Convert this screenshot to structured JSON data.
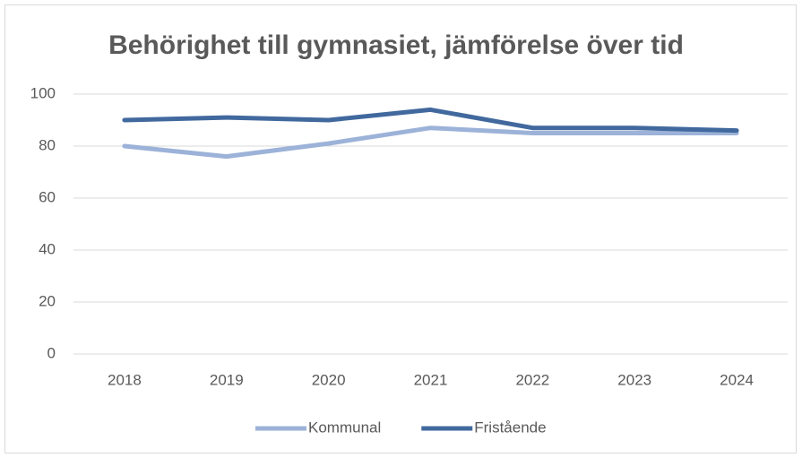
{
  "chart_data": {
    "type": "line",
    "title": "Behörighet till gymnasiet, jämförelse över tid",
    "categories": [
      "2018",
      "2019",
      "2020",
      "2021",
      "2022",
      "2023",
      "2024"
    ],
    "series": [
      {
        "name": "Kommunal",
        "color": "#9cb2d8",
        "values": [
          80,
          76,
          81,
          87,
          85,
          85,
          85
        ]
      },
      {
        "name": "Fristående",
        "color": "#41699e",
        "values": [
          90,
          91,
          90,
          94,
          87,
          87,
          86
        ]
      }
    ],
    "ylim": [
      0,
      100
    ],
    "yticks": [
      0,
      20,
      40,
      60,
      80,
      100
    ],
    "grid": true,
    "legend": "bottom"
  }
}
